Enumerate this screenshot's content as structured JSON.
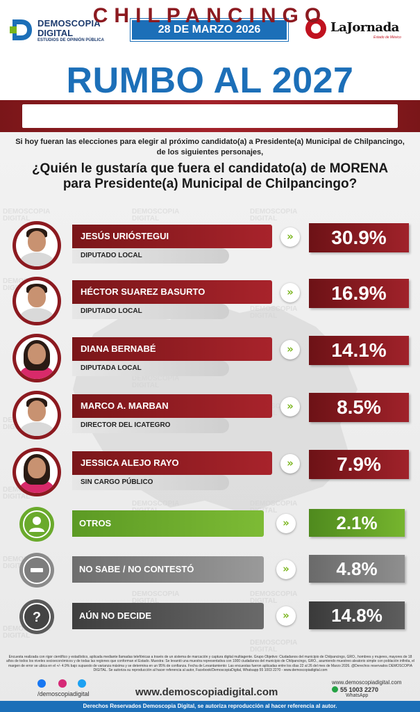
{
  "header": {
    "brand_line1": "DEMOSCOPIA",
    "brand_line2": "DIGITAL",
    "brand_tagline": "ESTUDIOS DE OPINIÓN PÚBLICA",
    "date": "28 DE MARZO 2026",
    "partner_name": "LaJornada",
    "partner_sub": "Estado de México"
  },
  "title": "RUMBO AL 2027",
  "city": "CHILPANCINGO",
  "intro_line1": "Si hoy fueran las elecciones para elegir al próximo candidato(a) a Presidente(a) Municipal de Chilpancingo,",
  "intro_line2": "de los siguientes personajes,",
  "question_line1": "¿Quién le gustaría que fuera el candidato(a) de MORENA",
  "question_line2": "para Presidente(a) Municipal de Chilpancingo?",
  "chart_data": {
    "type": "bar",
    "categories": [
      "JESÚS URIÓSTEGUI",
      "HÉCTOR SUAREZ BASURTO",
      "DIANA BERNABÉ",
      "MARCO A. MARBAN",
      "JESSICA ALEJO RAYO",
      "OTROS",
      "NO SABE / NO CONTESTÓ",
      "AÚN NO DECIDE"
    ],
    "values": [
      30.9,
      16.9,
      14.1,
      8.5,
      7.9,
      2.1,
      4.8,
      14.8
    ],
    "value_labels": [
      "30.9%",
      "16.9%",
      "14.1%",
      "8.5%",
      "7.9%",
      "2.1%",
      "4.8%",
      "14.8%"
    ],
    "roles": [
      "DIPUTADO LOCAL",
      "DIPUTADO LOCAL",
      "DIPUTADA LOCAL",
      "DIRECTOR DEL ICATEGRO",
      "SIN CARGO PÚBLICO"
    ],
    "title": "",
    "xlabel": "",
    "ylabel": ""
  },
  "colors": {
    "candidate": "#8c1a20",
    "otros": "#6aaa2c",
    "no_sabe": "#7d7d7d",
    "no_decide": "#555555",
    "brand_blue": "#1c6fb8"
  },
  "footer": {
    "note": "Encuesta realizada con rigor científico y estadístico, aplicada mediante llamadas telefónicas a través de un sistema de marcación y captura digital multiagente. Grupo Objetivo: Ciudadanos del municipio de Chilpancingo, GRO., hombres y mujeres, mayores de 18 años de todos los niveles socioeconómicos y de todas las regiones que conforman el Estado. Muestra: Se levantó una muestra representativa con 1000 ciudadanos del municipio de Chilpancingo, GRO., asumiendo muestreo aleatorio simple con población infinita, el margen de error se ubica en el +/- 4.9% bajo supuesto de varianza máxima y se determina en un 95% de confianza. Fecha de Levantamiento: Las encuestas fueron aplicadas entre los días 22 al 26 del mes de Marzo 2026. @Derechos reservados DEMOSCOPIA DIGITAL. Se autoriza su reproducción al hacer referencia al autor, Facebook/DemoscopiaDigital, Whatsapp 55 1003 2270 - www.demoscopiadigital.com",
    "social_handle": "/demoscopiadigital",
    "website": "www.demoscopiadigital.com",
    "contact_web": "www.demoscopiadigital.com",
    "phone": "55 1003 2270",
    "whatsapp_label": "WhatsApp",
    "rights": "Derechos Reservados Demoscopia Digital, se autoriza reproducción al hacer referencia al autor.",
    "watermark": "DEMOSCOPIA DIGITAL"
  },
  "icons": {
    "arrow": "double-chevron-right-icon",
    "otros": "user-icon",
    "no_sabe": "minus-icon",
    "no_decide": "question-icon"
  }
}
